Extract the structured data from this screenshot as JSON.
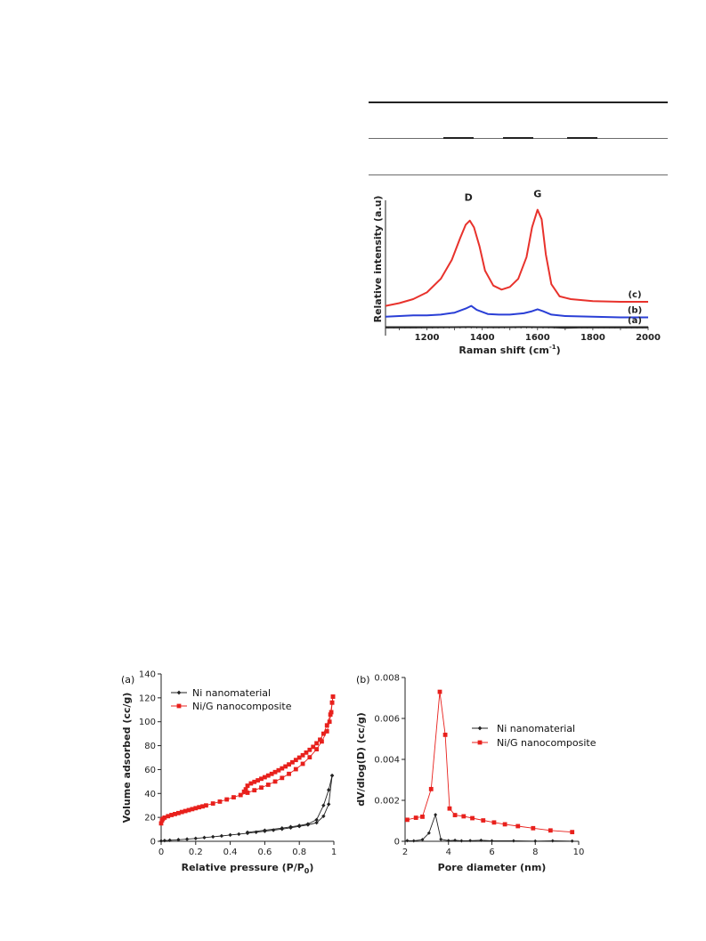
{
  "chart_data": [
    {
      "type": "line",
      "panel": "raman",
      "xlabel": "Raman shift (cm",
      "xlabel_sup": "-1",
      "xlabel_tail": ")",
      "ylabel": "Relative intensity (a.u)",
      "xlim": [
        1050,
        2000
      ],
      "xticks": [
        1200,
        1400,
        1600,
        1800,
        2000
      ],
      "peak_labels": [
        {
          "text": "D",
          "x": 1350
        },
        {
          "text": "G",
          "x": 1600
        }
      ],
      "series": [
        {
          "name": "(c)",
          "color": "#e8322c",
          "points": [
            [
              1050,
              0.22
            ],
            [
              1100,
              0.24
            ],
            [
              1150,
              0.27
            ],
            [
              1200,
              0.32
            ],
            [
              1250,
              0.42
            ],
            [
              1290,
              0.56
            ],
            [
              1320,
              0.72
            ],
            [
              1340,
              0.82
            ],
            [
              1355,
              0.85
            ],
            [
              1370,
              0.8
            ],
            [
              1390,
              0.66
            ],
            [
              1410,
              0.48
            ],
            [
              1440,
              0.37
            ],
            [
              1470,
              0.34
            ],
            [
              1500,
              0.36
            ],
            [
              1530,
              0.42
            ],
            [
              1560,
              0.58
            ],
            [
              1580,
              0.8
            ],
            [
              1600,
              0.93
            ],
            [
              1615,
              0.86
            ],
            [
              1630,
              0.6
            ],
            [
              1650,
              0.38
            ],
            [
              1680,
              0.29
            ],
            [
              1720,
              0.27
            ],
            [
              1800,
              0.255
            ],
            [
              1900,
              0.25
            ],
            [
              2000,
              0.25
            ]
          ]
        },
        {
          "name": "(b)",
          "color": "#2a3fd6",
          "points": [
            [
              1050,
              0.14
            ],
            [
              1100,
              0.145
            ],
            [
              1150,
              0.15
            ],
            [
              1200,
              0.15
            ],
            [
              1250,
              0.155
            ],
            [
              1300,
              0.17
            ],
            [
              1340,
              0.2
            ],
            [
              1360,
              0.22
            ],
            [
              1380,
              0.19
            ],
            [
              1420,
              0.16
            ],
            [
              1460,
              0.155
            ],
            [
              1500,
              0.155
            ],
            [
              1550,
              0.165
            ],
            [
              1580,
              0.18
            ],
            [
              1600,
              0.195
            ],
            [
              1620,
              0.18
            ],
            [
              1650,
              0.155
            ],
            [
              1700,
              0.145
            ],
            [
              1800,
              0.14
            ],
            [
              1900,
              0.135
            ],
            [
              2000,
              0.135
            ]
          ]
        },
        {
          "name": "(a)",
          "color": "#2a2a2a",
          "points": [
            [
              1050,
              0.06
            ],
            [
              1150,
              0.06
            ],
            [
              1250,
              0.062
            ],
            [
              1350,
              0.063
            ],
            [
              1450,
              0.062
            ],
            [
              1550,
              0.063
            ],
            [
              1650,
              0.062
            ],
            [
              1700,
              0.057
            ],
            [
              1750,
              0.06
            ],
            [
              1850,
              0.06
            ],
            [
              2000,
              0.06
            ]
          ]
        }
      ]
    },
    {
      "type": "line",
      "panel": "isotherm",
      "panel_label": "(a)",
      "xlabel": "Relative pressure (P/P",
      "xlabel_sub": "0",
      "xlabel_tail": ")",
      "ylabel": "Volume adsorbed (cc/g)",
      "xlim": [
        0,
        1
      ],
      "ylim": [
        0,
        140
      ],
      "xticks": [
        "0",
        "0.2",
        "0.4",
        "0.6",
        "0.8",
        "1"
      ],
      "yticks": [
        "0",
        "20",
        "40",
        "60",
        "80",
        "100",
        "120",
        "140"
      ],
      "legend_position": "top-left",
      "series": [
        {
          "name": "Ni nanomaterial",
          "color": "#222222",
          "marker": "diamond",
          "adsorption": [
            [
              0.0,
              0.3
            ],
            [
              0.02,
              0.6
            ],
            [
              0.05,
              0.9
            ],
            [
              0.1,
              1.3
            ],
            [
              0.15,
              1.8
            ],
            [
              0.2,
              2.4
            ],
            [
              0.25,
              3.1
            ],
            [
              0.3,
              3.8
            ],
            [
              0.35,
              4.5
            ],
            [
              0.4,
              5.3
            ],
            [
              0.45,
              6.0
            ],
            [
              0.5,
              6.8
            ],
            [
              0.55,
              7.6
            ],
            [
              0.6,
              8.4
            ],
            [
              0.65,
              9.3
            ],
            [
              0.7,
              10.2
            ],
            [
              0.75,
              11.3
            ],
            [
              0.8,
              12.5
            ],
            [
              0.85,
              13.8
            ],
            [
              0.9,
              15.5
            ],
            [
              0.94,
              21
            ],
            [
              0.97,
              31
            ],
            [
              0.99,
              55
            ]
          ],
          "desorption": [
            [
              0.99,
              55
            ],
            [
              0.97,
              43
            ],
            [
              0.94,
              30
            ],
            [
              0.9,
              18
            ],
            [
              0.85,
              14.5
            ],
            [
              0.8,
              13.2
            ],
            [
              0.75,
              12.1
            ],
            [
              0.7,
              11.0
            ],
            [
              0.6,
              9.2
            ],
            [
              0.5,
              7.5
            ]
          ]
        },
        {
          "name": "Ni/G nanocomposite",
          "color": "#e8201c",
          "marker": "square",
          "adsorption": [
            [
              0.0,
              15
            ],
            [
              0.005,
              17.5
            ],
            [
              0.01,
              18.8
            ],
            [
              0.02,
              19.8
            ],
            [
              0.04,
              21.0
            ],
            [
              0.06,
              22.0
            ],
            [
              0.08,
              22.8
            ],
            [
              0.1,
              23.6
            ],
            [
              0.12,
              24.5
            ],
            [
              0.14,
              25.3
            ],
            [
              0.16,
              26.1
            ],
            [
              0.18,
              26.9
            ],
            [
              0.2,
              27.7
            ],
            [
              0.22,
              28.5
            ],
            [
              0.24,
              29.2
            ],
            [
              0.26,
              30.0
            ],
            [
              0.3,
              31.6
            ],
            [
              0.34,
              33.2
            ],
            [
              0.38,
              35.0
            ],
            [
              0.42,
              36.8
            ],
            [
              0.46,
              38.7
            ],
            [
              0.5,
              40.6
            ],
            [
              0.54,
              42.7
            ],
            [
              0.58,
              44.9
            ],
            [
              0.62,
              47.3
            ],
            [
              0.66,
              50.0
            ],
            [
              0.7,
              53.0
            ],
            [
              0.74,
              56.4
            ],
            [
              0.78,
              60.3
            ],
            [
              0.82,
              64.8
            ],
            [
              0.86,
              70.3
            ],
            [
              0.9,
              77.0
            ],
            [
              0.93,
              83.5
            ],
            [
              0.96,
              92
            ],
            [
              0.975,
              100
            ],
            [
              0.985,
              108
            ],
            [
              0.99,
              116
            ],
            [
              0.995,
              121
            ]
          ],
          "desorption": [
            [
              0.995,
              121
            ],
            [
              0.99,
              116
            ],
            [
              0.98,
              106
            ],
            [
              0.96,
              97
            ],
            [
              0.94,
              90
            ],
            [
              0.92,
              85
            ],
            [
              0.9,
              82
            ],
            [
              0.88,
              79
            ],
            [
              0.86,
              76.5
            ],
            [
              0.84,
              74.2
            ],
            [
              0.82,
              72.0
            ],
            [
              0.8,
              70.0
            ],
            [
              0.78,
              68.0
            ],
            [
              0.76,
              66.1
            ],
            [
              0.74,
              64.3
            ],
            [
              0.72,
              62.6
            ],
            [
              0.7,
              61.0
            ],
            [
              0.68,
              59.4
            ],
            [
              0.66,
              57.9
            ],
            [
              0.64,
              56.4
            ],
            [
              0.62,
              55.0
            ],
            [
              0.6,
              53.6
            ],
            [
              0.58,
              52.3
            ],
            [
              0.56,
              51.0
            ],
            [
              0.54,
              49.7
            ],
            [
              0.52,
              48.4
            ],
            [
              0.5,
              46.5
            ],
            [
              0.49,
              43.5
            ],
            [
              0.48,
              41.5
            ]
          ]
        }
      ]
    },
    {
      "type": "line",
      "panel": "pore-size",
      "panel_label": "(b)",
      "xlabel": "Pore diameter (nm)",
      "ylabel": "dV/dlog(D) (cc/g)",
      "xlim": [
        2,
        10
      ],
      "ylim": [
        0,
        0.008
      ],
      "xticks": [
        "2",
        "4",
        "6",
        "8",
        "10"
      ],
      "yticks": [
        "0",
        "0.002",
        "0.004",
        "0.006",
        "0.008"
      ],
      "legend_position": "top-right",
      "series": [
        {
          "name": "Ni nanomaterial",
          "color": "#222222",
          "marker": "diamond",
          "points": [
            [
              2.1,
              3e-05
            ],
            [
              2.4,
              2e-05
            ],
            [
              2.8,
              8e-05
            ],
            [
              3.1,
              0.0004
            ],
            [
              3.4,
              0.0013
            ],
            [
              3.65,
              0.0001
            ],
            [
              4.0,
              3e-05
            ],
            [
              4.3,
              5e-05
            ],
            [
              4.6,
              2e-05
            ],
            [
              5.0,
              3e-05
            ],
            [
              5.5,
              5e-05
            ],
            [
              6.0,
              2e-05
            ],
            [
              7.0,
              2e-05
            ],
            [
              8.0,
              1e-05
            ],
            [
              8.8,
              2e-05
            ],
            [
              9.7,
              1e-05
            ]
          ]
        },
        {
          "name": "Ni/G nanocomposite",
          "color": "#e8201c",
          "marker": "square",
          "points": [
            [
              2.1,
              0.00105
            ],
            [
              2.5,
              0.00115
            ],
            [
              2.8,
              0.0012
            ],
            [
              3.2,
              0.00255
            ],
            [
              3.6,
              0.0073
            ],
            [
              3.85,
              0.0052
            ],
            [
              4.05,
              0.0016
            ],
            [
              4.3,
              0.00128
            ],
            [
              4.7,
              0.00122
            ],
            [
              5.1,
              0.00113
            ],
            [
              5.6,
              0.00102
            ],
            [
              6.1,
              0.00092
            ],
            [
              6.6,
              0.00083
            ],
            [
              7.2,
              0.00074
            ],
            [
              7.9,
              0.00064
            ],
            [
              8.7,
              0.00053
            ],
            [
              9.7,
              0.00045
            ]
          ]
        }
      ]
    }
  ]
}
